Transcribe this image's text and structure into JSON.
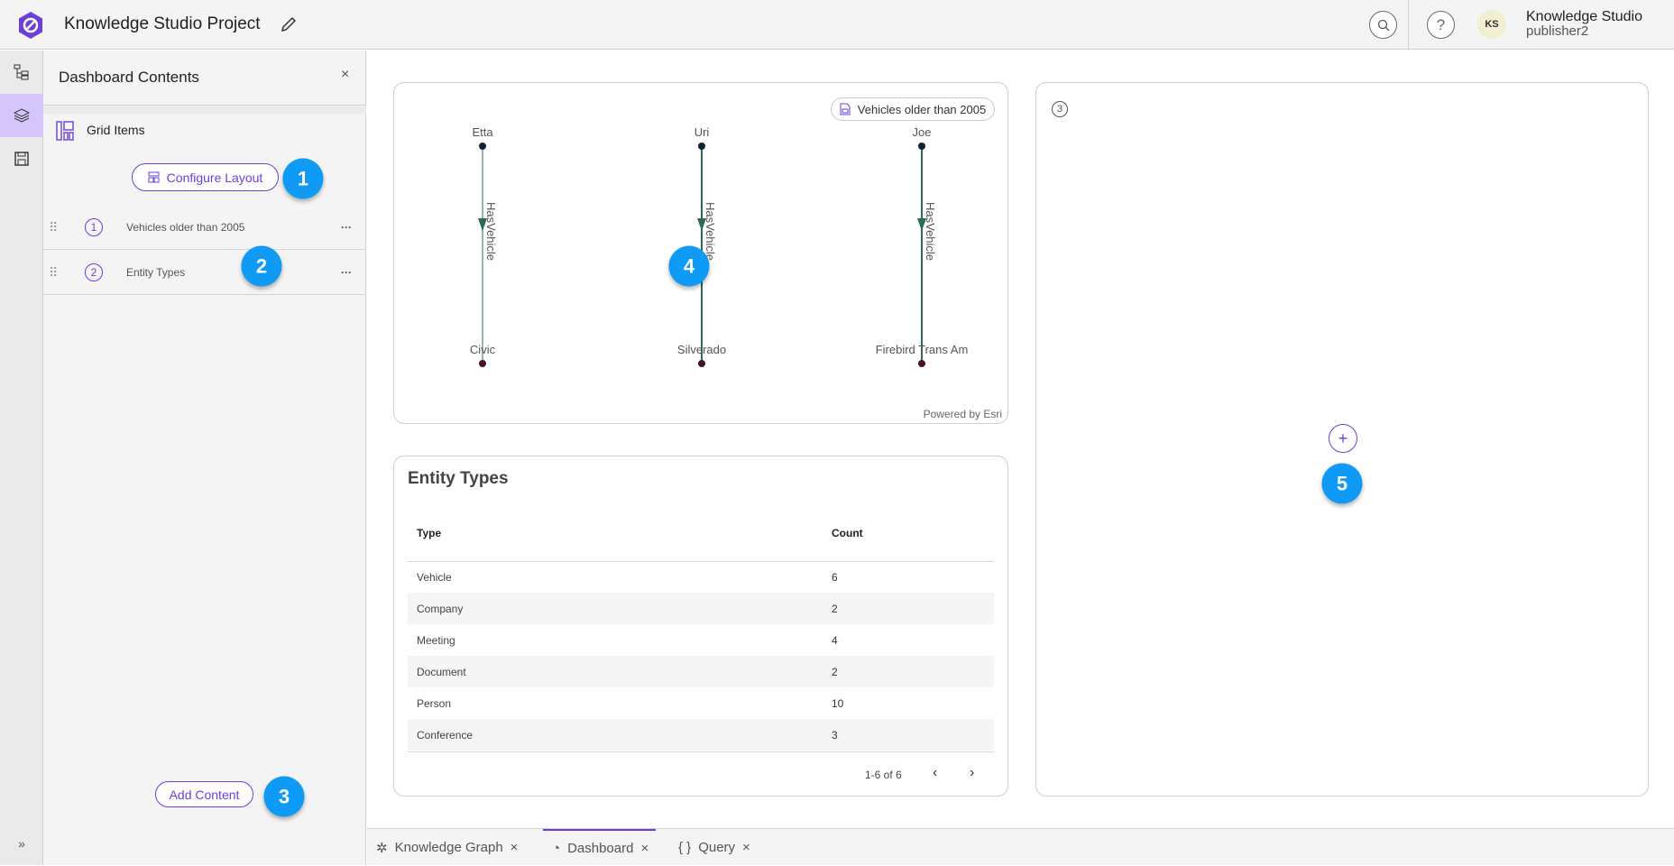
{
  "header": {
    "title": "Knowledge Studio Project",
    "user_name": "Knowledge Studio",
    "user_role": "publisher2",
    "avatar_initials": "KS"
  },
  "sidebar": {
    "title": "Dashboard Contents",
    "section": "Grid Items",
    "configure_label": "Configure Layout",
    "items": [
      {
        "num": "1",
        "label": "Vehicles older than 2005"
      },
      {
        "num": "2",
        "label": "Entity Types"
      }
    ],
    "add_label": "Add Content"
  },
  "graph_card": {
    "badge": "Vehicles older than 2005",
    "attribution": "Powered by Esri",
    "pairs": [
      {
        "from": "Etta",
        "to": "Civic",
        "rel": "HasVehicle"
      },
      {
        "from": "Uri",
        "to": "Silverado",
        "rel": "HasVehicle"
      },
      {
        "from": "Joe",
        "to": "Firebird Trans Am",
        "rel": "HasVehicle"
      }
    ]
  },
  "table_card": {
    "title": "Entity Types",
    "columns": [
      "Type",
      "Count"
    ],
    "rows": [
      [
        "Vehicle",
        "6"
      ],
      [
        "Company",
        "2"
      ],
      [
        "Meeting",
        "4"
      ],
      [
        "Document",
        "2"
      ],
      [
        "Person",
        "10"
      ],
      [
        "Conference",
        "3"
      ]
    ],
    "pagination": "1-6 of 6"
  },
  "empty_card": {
    "num": "3",
    "add_symbol": "+"
  },
  "annotations": [
    "1",
    "2",
    "3",
    "4",
    "5"
  ],
  "tabs": [
    {
      "label": "Knowledge Graph",
      "icon": "graph-icon"
    },
    {
      "label": "Dashboard",
      "icon": "gauge-icon",
      "active": true
    },
    {
      "label": "Query",
      "icon": "braces-icon"
    }
  ],
  "colors": {
    "accent": "#6e3fd6",
    "annotation": "#0f9af5",
    "edge": "#2d6b56",
    "rail_active": "#d4c6fb"
  }
}
